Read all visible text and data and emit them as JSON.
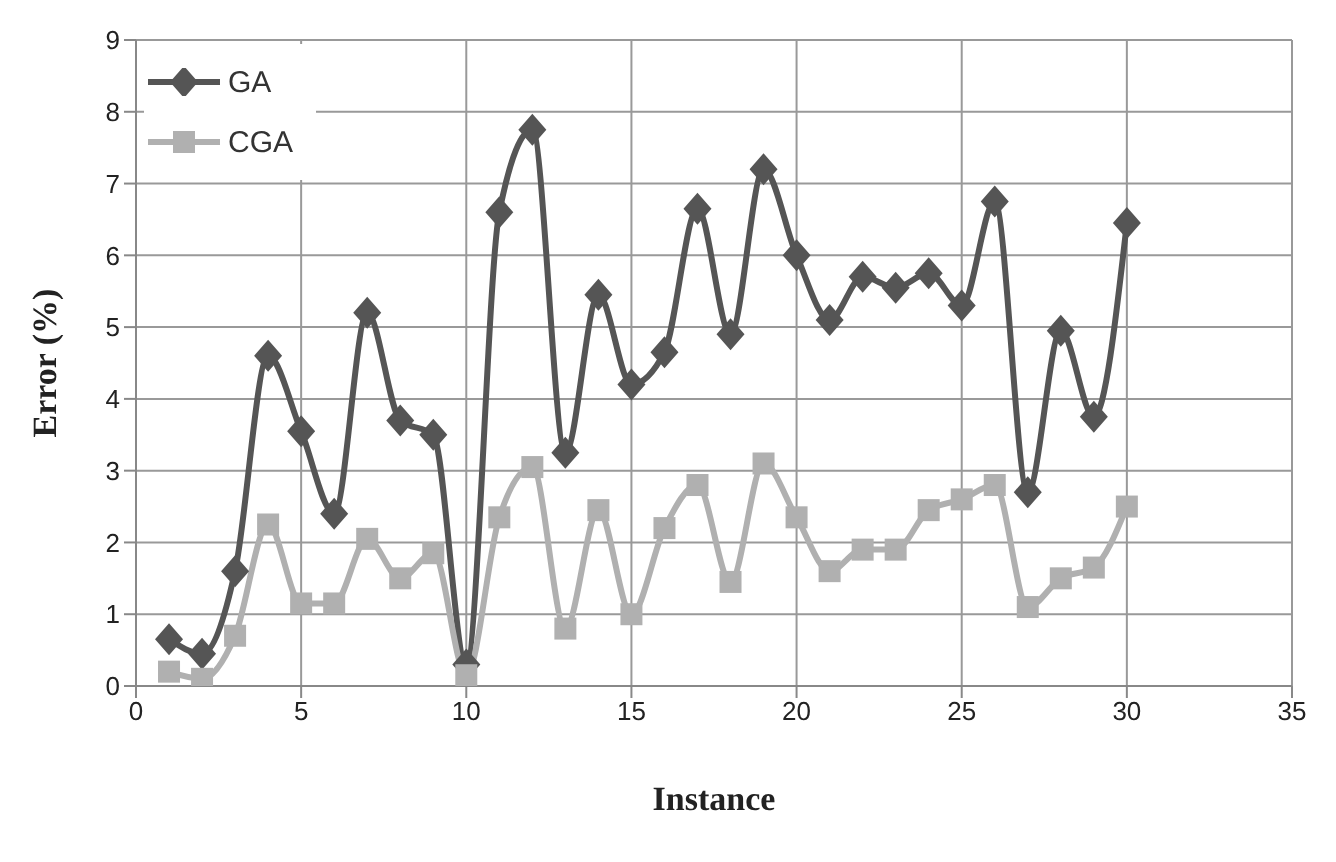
{
  "chart_data": {
    "type": "line",
    "xlabel": "Instance",
    "ylabel": "Error (%)",
    "x": [
      1,
      2,
      3,
      4,
      5,
      6,
      7,
      8,
      9,
      10,
      11,
      12,
      13,
      14,
      15,
      16,
      17,
      18,
      19,
      20,
      21,
      22,
      23,
      24,
      25,
      26,
      27,
      28,
      29,
      30
    ],
    "series": [
      {
        "name": "GA",
        "color": "#555555",
        "marker": "diamond",
        "values": [
          0.65,
          0.45,
          1.6,
          4.6,
          3.55,
          2.4,
          5.2,
          3.7,
          3.5,
          0.3,
          6.6,
          7.75,
          3.25,
          5.45,
          4.2,
          4.65,
          6.65,
          4.9,
          7.2,
          6.0,
          5.1,
          5.7,
          5.55,
          5.75,
          5.3,
          6.75,
          2.7,
          4.95,
          3.75,
          6.45
        ]
      },
      {
        "name": "CGA",
        "color": "#b0b0b0",
        "marker": "square",
        "values": [
          0.2,
          0.1,
          0.7,
          2.25,
          1.15,
          1.15,
          2.05,
          1.5,
          1.85,
          0.15,
          2.35,
          3.05,
          0.8,
          2.45,
          1.0,
          2.2,
          2.8,
          1.45,
          3.1,
          2.35,
          1.6,
          1.9,
          1.9,
          2.45,
          2.6,
          2.8,
          1.1,
          1.5,
          1.65,
          2.5
        ]
      }
    ],
    "xlim": [
      0,
      35
    ],
    "xticks": [
      0,
      5,
      10,
      15,
      20,
      25,
      30,
      35
    ],
    "ylim": [
      0,
      9
    ],
    "yticks": [
      0,
      1,
      2,
      3,
      4,
      5,
      6,
      7,
      8,
      9
    ],
    "grid": true,
    "legend": "top left",
    "line_style": "solid"
  }
}
